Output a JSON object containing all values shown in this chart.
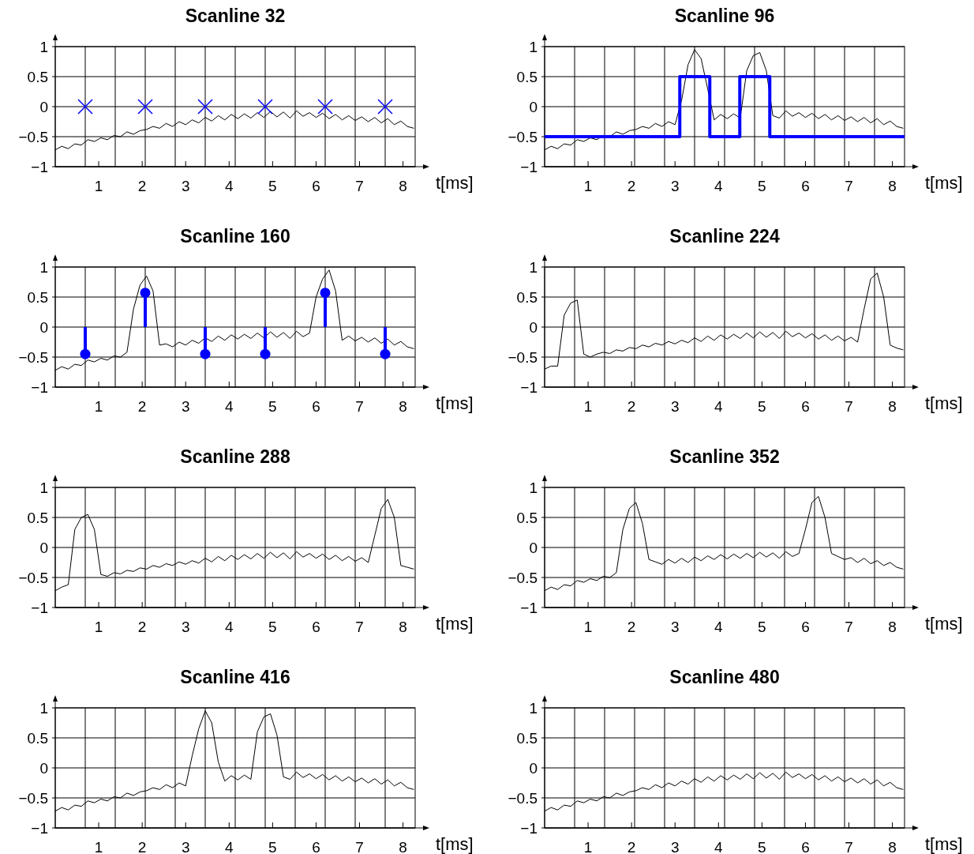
{
  "chart_data": [
    {
      "type": "line",
      "title": "Scanline 32",
      "xlabel": "t[ms]",
      "xlim": [
        0,
        8.28
      ],
      "ylim": [
        -1,
        1
      ],
      "grid": true,
      "marker": "none",
      "xticks": [
        1,
        2,
        3,
        4,
        5,
        6,
        7,
        8,
        {
          "value": 0.69,
          "label": null
        },
        {
          "value": 1.38,
          "label": null
        },
        {
          "value": 2.07,
          "label": null
        },
        {
          "value": 2.76,
          "label": null
        },
        {
          "value": 3.45,
          "label": null
        },
        {
          "value": 4.14,
          "label": null
        },
        {
          "value": 4.83,
          "label": null
        },
        {
          "value": 5.52,
          "label": null
        },
        {
          "value": 6.21,
          "label": null
        },
        {
          "value": 6.9,
          "label": null
        },
        {
          "value": 7.59,
          "label": null
        }
      ],
      "yticks": [
        -1,
        -0.5,
        0,
        0.5,
        1
      ],
      "x": [
        0,
        0.15,
        0.3,
        0.45,
        0.6,
        0.75,
        0.9,
        1.05,
        1.2,
        1.35,
        1.5,
        1.65,
        1.8,
        1.95,
        2.1,
        2.25,
        2.4,
        2.55,
        2.7,
        2.85,
        3,
        3.15,
        3.3,
        3.45,
        3.6,
        3.75,
        3.9,
        4.05,
        4.2,
        4.35,
        4.5,
        4.65,
        4.8,
        4.95,
        5.1,
        5.25,
        5.4,
        5.55,
        5.7,
        5.85,
        6,
        6.15,
        6.3,
        6.45,
        6.6,
        6.75,
        6.9,
        7.05,
        7.2,
        7.35,
        7.5,
        7.65,
        7.8,
        7.95,
        8.1,
        8.25
      ],
      "series": [
        {
          "color": "#000000",
          "values": [
            -0.72,
            -0.66,
            -0.7,
            -0.62,
            -0.64,
            -0.55,
            -0.58,
            -0.52,
            -0.55,
            -0.48,
            -0.5,
            -0.42,
            -0.46,
            -0.4,
            -0.38,
            -0.33,
            -0.36,
            -0.28,
            -0.33,
            -0.25,
            -0.3,
            -0.22,
            -0.27,
            -0.18,
            -0.24,
            -0.15,
            -0.22,
            -0.13,
            -0.2,
            -0.12,
            -0.19,
            -0.1,
            -0.18,
            -0.08,
            -0.17,
            -0.09,
            -0.19,
            -0.07,
            -0.16,
            -0.1,
            -0.18,
            -0.11,
            -0.2,
            -0.13,
            -0.22,
            -0.15,
            -0.23,
            -0.17,
            -0.25,
            -0.18,
            -0.27,
            -0.2,
            -0.3,
            -0.24,
            -0.33,
            -0.36
          ]
        },
        {
          "type": "scatter",
          "color": "#0000ff",
          "marker": "cross",
          "x": [
            0.69,
            2.07,
            3.45,
            4.83,
            6.21,
            7.59
          ],
          "values": [
            0,
            0,
            0,
            0,
            0,
            0
          ]
        }
      ]
    },
    {
      "type": "line",
      "title": "Scanline 96",
      "xlabel": "t[ms]",
      "xlim": [
        0,
        8.28
      ],
      "ylim": [
        -1,
        1
      ],
      "grid": true,
      "marker": "none",
      "xticks": [
        1,
        2,
        3,
        4,
        5,
        6,
        7,
        8,
        {
          "value": 0.69,
          "label": null
        },
        {
          "value": 1.38,
          "label": null
        },
        {
          "value": 2.07,
          "label": null
        },
        {
          "value": 2.76,
          "label": null
        },
        {
          "value": 3.45,
          "label": null
        },
        {
          "value": 4.14,
          "label": null
        },
        {
          "value": 4.83,
          "label": null
        },
        {
          "value": 5.52,
          "label": null
        },
        {
          "value": 6.21,
          "label": null
        },
        {
          "value": 6.9,
          "label": null
        },
        {
          "value": 7.59,
          "label": null
        }
      ],
      "yticks": [
        -1,
        -0.5,
        0,
        0.5,
        1
      ],
      "x": [
        0,
        0.15,
        0.3,
        0.45,
        0.6,
        0.75,
        0.9,
        1.05,
        1.2,
        1.35,
        1.5,
        1.65,
        1.8,
        1.95,
        2.1,
        2.25,
        2.4,
        2.55,
        2.7,
        2.85,
        3,
        3.15,
        3.3,
        3.45,
        3.6,
        3.75,
        3.9,
        4.05,
        4.2,
        4.35,
        4.5,
        4.65,
        4.8,
        4.95,
        5.1,
        5.25,
        5.4,
        5.55,
        5.7,
        5.85,
        6,
        6.15,
        6.3,
        6.45,
        6.6,
        6.75,
        6.9,
        7.05,
        7.2,
        7.35,
        7.5,
        7.65,
        7.8,
        7.95,
        8.1,
        8.25
      ],
      "series": [
        {
          "color": "#000000",
          "values": [
            -0.72,
            -0.66,
            -0.7,
            -0.62,
            -0.64,
            -0.55,
            -0.58,
            -0.52,
            -0.55,
            -0.48,
            -0.5,
            -0.42,
            -0.46,
            -0.4,
            -0.38,
            -0.33,
            -0.36,
            -0.28,
            -0.33,
            -0.25,
            -0.3,
            0.1,
            0.7,
            0.95,
            0.8,
            0.3,
            -0.22,
            -0.13,
            -0.2,
            -0.12,
            -0.19,
            0.6,
            0.85,
            0.9,
            0.6,
            -0.15,
            -0.19,
            -0.07,
            -0.16,
            -0.1,
            -0.18,
            -0.11,
            -0.2,
            -0.13,
            -0.22,
            -0.15,
            -0.23,
            -0.17,
            -0.25,
            -0.18,
            -0.27,
            -0.2,
            -0.3,
            -0.24,
            -0.33,
            -0.36
          ]
        },
        {
          "type": "step",
          "color": "#0000ff",
          "x": [
            0,
            3.11,
            3.8,
            4.49,
            5.18,
            8.28
          ],
          "values": [
            -0.5,
            0.5,
            -0.5,
            0.5,
            -0.5,
            -0.5
          ]
        }
      ]
    },
    {
      "type": "line",
      "title": "Scanline 160",
      "xlabel": "t[ms]",
      "xlim": [
        0,
        8.28
      ],
      "ylim": [
        -1,
        1
      ],
      "grid": true,
      "marker": "none",
      "xticks": [
        1,
        2,
        3,
        4,
        5,
        6,
        7,
        8,
        {
          "value": 0.69,
          "label": null
        },
        {
          "value": 1.38,
          "label": null
        },
        {
          "value": 2.07,
          "label": null
        },
        {
          "value": 2.76,
          "label": null
        },
        {
          "value": 3.45,
          "label": null
        },
        {
          "value": 4.14,
          "label": null
        },
        {
          "value": 4.83,
          "label": null
        },
        {
          "value": 5.52,
          "label": null
        },
        {
          "value": 6.21,
          "label": null
        },
        {
          "value": 6.9,
          "label": null
        },
        {
          "value": 7.59,
          "label": null
        }
      ],
      "yticks": [
        -1,
        -0.5,
        0,
        0.5,
        1
      ],
      "x": [
        0,
        0.15,
        0.3,
        0.45,
        0.6,
        0.75,
        0.9,
        1.05,
        1.2,
        1.35,
        1.5,
        1.65,
        1.8,
        1.95,
        2.1,
        2.25,
        2.4,
        2.55,
        2.7,
        2.85,
        3,
        3.15,
        3.3,
        3.45,
        3.6,
        3.75,
        3.9,
        4.05,
        4.2,
        4.35,
        4.5,
        4.65,
        4.8,
        4.95,
        5.1,
        5.25,
        5.4,
        5.55,
        5.7,
        5.85,
        6,
        6.15,
        6.3,
        6.45,
        6.6,
        6.75,
        6.9,
        7.05,
        7.2,
        7.35,
        7.5,
        7.65,
        7.8,
        7.95,
        8.1,
        8.25
      ],
      "series": [
        {
          "color": "#000000",
          "values": [
            -0.72,
            -0.66,
            -0.7,
            -0.62,
            -0.64,
            -0.55,
            -0.58,
            -0.52,
            -0.55,
            -0.48,
            -0.5,
            -0.42,
            0.3,
            0.7,
            0.85,
            0.6,
            -0.3,
            -0.28,
            -0.33,
            -0.25,
            -0.3,
            -0.22,
            -0.27,
            -0.18,
            -0.24,
            -0.15,
            -0.22,
            -0.13,
            -0.2,
            -0.12,
            -0.19,
            -0.1,
            -0.18,
            -0.08,
            -0.17,
            -0.09,
            -0.19,
            -0.07,
            -0.16,
            -0.1,
            0.5,
            0.8,
            0.95,
            0.6,
            -0.22,
            -0.15,
            -0.23,
            -0.17,
            -0.25,
            -0.18,
            -0.27,
            -0.2,
            -0.3,
            -0.24,
            -0.33,
            -0.36
          ]
        },
        {
          "type": "lollipop",
          "color": "#0000ff",
          "marker": "circle",
          "x": [
            0.69,
            2.07,
            3.45,
            4.83,
            6.21,
            7.59
          ],
          "values": [
            -0.45,
            0.57,
            -0.45,
            -0.45,
            0.57,
            -0.45
          ]
        }
      ]
    },
    {
      "type": "line",
      "title": "Scanline 224",
      "xlabel": "t[ms]",
      "xlim": [
        0,
        8.28
      ],
      "ylim": [
        -1,
        1
      ],
      "grid": true,
      "marker": "none",
      "xticks": [
        1,
        2,
        3,
        4,
        5,
        6,
        7,
        8,
        {
          "value": 0.69,
          "label": null
        },
        {
          "value": 1.38,
          "label": null
        },
        {
          "value": 2.07,
          "label": null
        },
        {
          "value": 2.76,
          "label": null
        },
        {
          "value": 3.45,
          "label": null
        },
        {
          "value": 4.14,
          "label": null
        },
        {
          "value": 4.83,
          "label": null
        },
        {
          "value": 5.52,
          "label": null
        },
        {
          "value": 6.21,
          "label": null
        },
        {
          "value": 6.9,
          "label": null
        },
        {
          "value": 7.59,
          "label": null
        }
      ],
      "yticks": [
        -1,
        -0.5,
        0,
        0.5,
        1
      ],
      "x": [
        0,
        0.15,
        0.3,
        0.45,
        0.6,
        0.75,
        0.9,
        1.05,
        1.2,
        1.35,
        1.5,
        1.65,
        1.8,
        1.95,
        2.1,
        2.25,
        2.4,
        2.55,
        2.7,
        2.85,
        3,
        3.15,
        3.3,
        3.45,
        3.6,
        3.75,
        3.9,
        4.05,
        4.2,
        4.35,
        4.5,
        4.65,
        4.8,
        4.95,
        5.1,
        5.25,
        5.4,
        5.55,
        5.7,
        5.85,
        6,
        6.15,
        6.3,
        6.45,
        6.6,
        6.75,
        6.9,
        7.05,
        7.2,
        7.35,
        7.5,
        7.65,
        7.8,
        7.95,
        8.1,
        8.25
      ],
      "series": [
        {
          "color": "#000000",
          "values": [
            -0.7,
            -0.65,
            -0.65,
            0.2,
            0.4,
            0.45,
            -0.45,
            -0.5,
            -0.45,
            -0.42,
            -0.44,
            -0.38,
            -0.4,
            -0.34,
            -0.36,
            -0.3,
            -0.33,
            -0.27,
            -0.3,
            -0.24,
            -0.28,
            -0.22,
            -0.26,
            -0.18,
            -0.24,
            -0.15,
            -0.22,
            -0.13,
            -0.2,
            -0.12,
            -0.19,
            -0.1,
            -0.18,
            -0.08,
            -0.17,
            -0.09,
            -0.19,
            -0.07,
            -0.16,
            -0.1,
            -0.18,
            -0.11,
            -0.2,
            -0.13,
            -0.22,
            -0.15,
            -0.23,
            -0.17,
            -0.25,
            0.3,
            0.8,
            0.9,
            0.5,
            -0.3,
            -0.35,
            -0.38
          ]
        }
      ]
    },
    {
      "type": "line",
      "title": "Scanline 288",
      "xlabel": "t[ms]",
      "xlim": [
        0,
        8.28
      ],
      "ylim": [
        -1,
        1
      ],
      "grid": true,
      "marker": "none",
      "xticks": [
        1,
        2,
        3,
        4,
        5,
        6,
        7,
        8,
        {
          "value": 0.69,
          "label": null
        },
        {
          "value": 1.38,
          "label": null
        },
        {
          "value": 2.07,
          "label": null
        },
        {
          "value": 2.76,
          "label": null
        },
        {
          "value": 3.45,
          "label": null
        },
        {
          "value": 4.14,
          "label": null
        },
        {
          "value": 4.83,
          "label": null
        },
        {
          "value": 5.52,
          "label": null
        },
        {
          "value": 6.21,
          "label": null
        },
        {
          "value": 6.9,
          "label": null
        },
        {
          "value": 7.59,
          "label": null
        }
      ],
      "yticks": [
        -1,
        -0.5,
        0,
        0.5,
        1
      ],
      "x": [
        0,
        0.15,
        0.3,
        0.45,
        0.6,
        0.75,
        0.9,
        1.05,
        1.2,
        1.35,
        1.5,
        1.65,
        1.8,
        1.95,
        2.1,
        2.25,
        2.4,
        2.55,
        2.7,
        2.85,
        3,
        3.15,
        3.3,
        3.45,
        3.6,
        3.75,
        3.9,
        4.05,
        4.2,
        4.35,
        4.5,
        4.65,
        4.8,
        4.95,
        5.1,
        5.25,
        5.4,
        5.55,
        5.7,
        5.85,
        6,
        6.15,
        6.3,
        6.45,
        6.6,
        6.75,
        6.9,
        7.05,
        7.2,
        7.35,
        7.5,
        7.65,
        7.8,
        7.95,
        8.1,
        8.25
      ],
      "series": [
        {
          "color": "#000000",
          "values": [
            -0.72,
            -0.66,
            -0.62,
            0.3,
            0.5,
            0.55,
            0.3,
            -0.45,
            -0.48,
            -0.42,
            -0.44,
            -0.38,
            -0.4,
            -0.34,
            -0.36,
            -0.3,
            -0.33,
            -0.27,
            -0.3,
            -0.24,
            -0.28,
            -0.22,
            -0.26,
            -0.18,
            -0.24,
            -0.15,
            -0.22,
            -0.13,
            -0.2,
            -0.12,
            -0.19,
            -0.1,
            -0.18,
            -0.08,
            -0.17,
            -0.09,
            -0.19,
            -0.07,
            -0.16,
            -0.1,
            -0.18,
            -0.11,
            -0.2,
            -0.13,
            -0.22,
            -0.15,
            -0.23,
            -0.17,
            -0.25,
            0.2,
            0.65,
            0.8,
            0.5,
            -0.3,
            -0.33,
            -0.36
          ]
        }
      ]
    },
    {
      "type": "line",
      "title": "Scanline 352",
      "xlabel": "t[ms]",
      "xlim": [
        0,
        8.28
      ],
      "ylim": [
        -1,
        1
      ],
      "grid": true,
      "marker": "none",
      "xticks": [
        1,
        2,
        3,
        4,
        5,
        6,
        7,
        8,
        {
          "value": 0.69,
          "label": null
        },
        {
          "value": 1.38,
          "label": null
        },
        {
          "value": 2.07,
          "label": null
        },
        {
          "value": 2.76,
          "label": null
        },
        {
          "value": 3.45,
          "label": null
        },
        {
          "value": 4.14,
          "label": null
        },
        {
          "value": 4.83,
          "label": null
        },
        {
          "value": 5.52,
          "label": null
        },
        {
          "value": 6.21,
          "label": null
        },
        {
          "value": 6.9,
          "label": null
        },
        {
          "value": 7.59,
          "label": null
        }
      ],
      "yticks": [
        -1,
        -0.5,
        0,
        0.5,
        1
      ],
      "x": [
        0,
        0.15,
        0.3,
        0.45,
        0.6,
        0.75,
        0.9,
        1.05,
        1.2,
        1.35,
        1.5,
        1.65,
        1.8,
        1.95,
        2.1,
        2.25,
        2.4,
        2.55,
        2.7,
        2.85,
        3,
        3.15,
        3.3,
        3.45,
        3.6,
        3.75,
        3.9,
        4.05,
        4.2,
        4.35,
        4.5,
        4.65,
        4.8,
        4.95,
        5.1,
        5.25,
        5.4,
        5.55,
        5.7,
        5.85,
        6,
        6.15,
        6.3,
        6.45,
        6.6,
        6.75,
        6.9,
        7.05,
        7.2,
        7.35,
        7.5,
        7.65,
        7.8,
        7.95,
        8.1,
        8.25
      ],
      "series": [
        {
          "color": "#000000",
          "values": [
            -0.72,
            -0.66,
            -0.7,
            -0.62,
            -0.64,
            -0.55,
            -0.58,
            -0.52,
            -0.55,
            -0.48,
            -0.5,
            -0.42,
            0.3,
            0.65,
            0.75,
            0.4,
            -0.2,
            -0.24,
            -0.28,
            -0.2,
            -0.26,
            -0.18,
            -0.25,
            -0.16,
            -0.22,
            -0.14,
            -0.2,
            -0.12,
            -0.19,
            -0.11,
            -0.18,
            -0.1,
            -0.17,
            -0.08,
            -0.16,
            -0.09,
            -0.18,
            -0.07,
            -0.15,
            -0.1,
            0.3,
            0.75,
            0.85,
            0.5,
            -0.1,
            -0.15,
            -0.2,
            -0.17,
            -0.25,
            -0.18,
            -0.27,
            -0.22,
            -0.3,
            -0.25,
            -0.33,
            -0.36
          ]
        }
      ]
    },
    {
      "type": "line",
      "title": "Scanline 416",
      "xlabel": "t[ms]",
      "xlim": [
        0,
        8.28
      ],
      "ylim": [
        -1,
        1
      ],
      "grid": true,
      "marker": "none",
      "xticks": [
        1,
        2,
        3,
        4,
        5,
        6,
        7,
        8,
        {
          "value": 0.69,
          "label": null
        },
        {
          "value": 1.38,
          "label": null
        },
        {
          "value": 2.07,
          "label": null
        },
        {
          "value": 2.76,
          "label": null
        },
        {
          "value": 3.45,
          "label": null
        },
        {
          "value": 4.14,
          "label": null
        },
        {
          "value": 4.83,
          "label": null
        },
        {
          "value": 5.52,
          "label": null
        },
        {
          "value": 6.21,
          "label": null
        },
        {
          "value": 6.9,
          "label": null
        },
        {
          "value": 7.59,
          "label": null
        }
      ],
      "yticks": [
        -1,
        -0.5,
        0,
        0.5,
        1
      ],
      "x": [
        0,
        0.15,
        0.3,
        0.45,
        0.6,
        0.75,
        0.9,
        1.05,
        1.2,
        1.35,
        1.5,
        1.65,
        1.8,
        1.95,
        2.1,
        2.25,
        2.4,
        2.55,
        2.7,
        2.85,
        3,
        3.15,
        3.3,
        3.45,
        3.6,
        3.75,
        3.9,
        4.05,
        4.2,
        4.35,
        4.5,
        4.65,
        4.8,
        4.95,
        5.1,
        5.25,
        5.4,
        5.55,
        5.7,
        5.85,
        6,
        6.15,
        6.3,
        6.45,
        6.6,
        6.75,
        6.9,
        7.05,
        7.2,
        7.35,
        7.5,
        7.65,
        7.8,
        7.95,
        8.1,
        8.25
      ],
      "series": [
        {
          "color": "#000000",
          "values": [
            -0.72,
            -0.66,
            -0.7,
            -0.62,
            -0.64,
            -0.55,
            -0.58,
            -0.52,
            -0.55,
            -0.48,
            -0.5,
            -0.42,
            -0.46,
            -0.4,
            -0.38,
            -0.33,
            -0.36,
            -0.28,
            -0.33,
            -0.25,
            -0.3,
            0.2,
            0.65,
            0.95,
            0.75,
            0.1,
            -0.22,
            -0.13,
            -0.2,
            -0.12,
            -0.19,
            0.6,
            0.85,
            0.9,
            0.55,
            -0.15,
            -0.19,
            -0.07,
            -0.16,
            -0.1,
            -0.18,
            -0.11,
            -0.2,
            -0.13,
            -0.22,
            -0.15,
            -0.23,
            -0.17,
            -0.25,
            -0.18,
            -0.27,
            -0.2,
            -0.3,
            -0.24,
            -0.33,
            -0.36
          ]
        }
      ]
    },
    {
      "type": "line",
      "title": "Scanline 480",
      "xlabel": "t[ms]",
      "xlim": [
        0,
        8.28
      ],
      "ylim": [
        -1,
        1
      ],
      "grid": true,
      "marker": "none",
      "xticks": [
        1,
        2,
        3,
        4,
        5,
        6,
        7,
        8,
        {
          "value": 0.69,
          "label": null
        },
        {
          "value": 1.38,
          "label": null
        },
        {
          "value": 2.07,
          "label": null
        },
        {
          "value": 2.76,
          "label": null
        },
        {
          "value": 3.45,
          "label": null
        },
        {
          "value": 4.14,
          "label": null
        },
        {
          "value": 4.83,
          "label": null
        },
        {
          "value": 5.52,
          "label": null
        },
        {
          "value": 6.21,
          "label": null
        },
        {
          "value": 6.9,
          "label": null
        },
        {
          "value": 7.59,
          "label": null
        }
      ],
      "yticks": [
        -1,
        -0.5,
        0,
        0.5,
        1
      ],
      "x": [
        0,
        0.15,
        0.3,
        0.45,
        0.6,
        0.75,
        0.9,
        1.05,
        1.2,
        1.35,
        1.5,
        1.65,
        1.8,
        1.95,
        2.1,
        2.25,
        2.4,
        2.55,
        2.7,
        2.85,
        3,
        3.15,
        3.3,
        3.45,
        3.6,
        3.75,
        3.9,
        4.05,
        4.2,
        4.35,
        4.5,
        4.65,
        4.8,
        4.95,
        5.1,
        5.25,
        5.4,
        5.55,
        5.7,
        5.85,
        6,
        6.15,
        6.3,
        6.45,
        6.6,
        6.75,
        6.9,
        7.05,
        7.2,
        7.35,
        7.5,
        7.65,
        7.8,
        7.95,
        8.1,
        8.25
      ],
      "series": [
        {
          "color": "#000000",
          "values": [
            -0.72,
            -0.66,
            -0.7,
            -0.62,
            -0.64,
            -0.55,
            -0.58,
            -0.52,
            -0.55,
            -0.48,
            -0.5,
            -0.42,
            -0.46,
            -0.4,
            -0.38,
            -0.33,
            -0.36,
            -0.28,
            -0.33,
            -0.25,
            -0.3,
            -0.22,
            -0.27,
            -0.18,
            -0.24,
            -0.15,
            -0.22,
            -0.13,
            -0.2,
            -0.12,
            -0.19,
            -0.1,
            -0.18,
            -0.08,
            -0.17,
            -0.09,
            -0.19,
            -0.07,
            -0.16,
            -0.1,
            -0.18,
            -0.11,
            -0.2,
            -0.13,
            -0.22,
            -0.15,
            -0.23,
            -0.17,
            -0.25,
            -0.18,
            -0.27,
            -0.2,
            -0.3,
            -0.24,
            -0.33,
            -0.36
          ]
        }
      ]
    }
  ]
}
